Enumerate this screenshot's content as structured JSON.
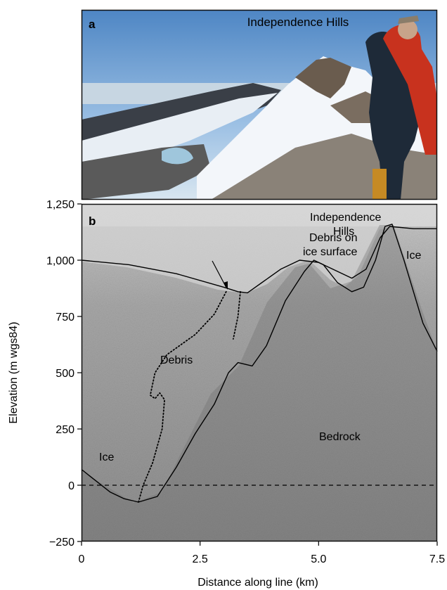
{
  "panel_a": {
    "label": "a",
    "caption": "Independence Hills"
  },
  "panel_b": {
    "label": "b",
    "annotations": {
      "debris_surface_line1": "Debris on",
      "debris_surface_line2": "ice surface",
      "hills_line1": "Independence",
      "hills_line2": "Hills",
      "ice_right": "Ice",
      "debris": "Debris",
      "bedrock": "Bedrock",
      "ice_left": "Ice"
    }
  },
  "chart_data": {
    "type": "line",
    "xlabel": "Distance along line (km)",
    "ylabel": "Elevation (m wgs84)",
    "xlim": [
      0,
      7.5
    ],
    "ylim": [
      -250,
      1250
    ],
    "x_ticks": [
      0,
      2.5,
      5.0,
      7.5
    ],
    "x_tick_labels": [
      "0",
      "2.5",
      "5.0",
      "7.5"
    ],
    "y_ticks": [
      1250,
      1000,
      750,
      500,
      250,
      0,
      -250
    ],
    "y_tick_labels": [
      "1,250",
      "1,000",
      "750",
      "500",
      "250",
      "0",
      "−250"
    ],
    "series": [
      {
        "style": "solid",
        "color": "#000000",
        "points": [
          [
            0,
            1000
          ],
          [
            1.0,
            980
          ],
          [
            2.0,
            940
          ],
          [
            3.0,
            880
          ],
          [
            3.3,
            860
          ],
          [
            3.5,
            855
          ],
          [
            3.8,
            900
          ],
          [
            4.2,
            960
          ],
          [
            4.6,
            1000
          ],
          [
            5.0,
            990
          ],
          [
            5.4,
            950
          ],
          [
            5.7,
            920
          ],
          [
            6.0,
            960
          ],
          [
            6.3,
            1100
          ],
          [
            6.5,
            1150
          ],
          [
            7.0,
            1140
          ],
          [
            7.5,
            1140
          ]
        ]
      },
      {
        "style": "solid",
        "color": "#000000",
        "points": [
          [
            0,
            70
          ],
          [
            0.3,
            20
          ],
          [
            0.6,
            -30
          ],
          [
            0.9,
            -60
          ],
          [
            1.2,
            -75
          ],
          [
            1.6,
            -50
          ],
          [
            2.0,
            80
          ],
          [
            2.4,
            230
          ],
          [
            2.8,
            360
          ],
          [
            3.1,
            500
          ],
          [
            3.3,
            545
          ],
          [
            3.6,
            530
          ],
          [
            3.9,
            620
          ],
          [
            4.3,
            820
          ],
          [
            4.7,
            950
          ],
          [
            4.9,
            1000
          ],
          [
            5.1,
            980
          ],
          [
            5.4,
            900
          ],
          [
            5.7,
            860
          ],
          [
            5.95,
            880
          ],
          [
            6.2,
            1000
          ],
          [
            6.4,
            1150
          ],
          [
            6.55,
            1160
          ],
          [
            6.8,
            1000
          ],
          [
            7.2,
            720
          ],
          [
            7.5,
            595
          ]
        ]
      },
      {
        "style": "dotted",
        "color": "#000000",
        "points": [
          [
            3.05,
            860
          ],
          [
            2.8,
            760
          ],
          [
            2.4,
            670
          ],
          [
            1.8,
            580
          ],
          [
            1.55,
            500
          ],
          [
            1.45,
            400
          ],
          [
            1.55,
            385
          ],
          [
            1.65,
            410
          ],
          [
            1.75,
            380
          ],
          [
            1.7,
            250
          ],
          [
            1.5,
            100
          ],
          [
            1.3,
            0
          ],
          [
            1.2,
            -75
          ]
        ]
      },
      {
        "style": "dotted",
        "color": "#000000",
        "points": [
          [
            3.35,
            860
          ],
          [
            3.3,
            750
          ],
          [
            3.2,
            650
          ]
        ]
      },
      {
        "style": "dashed",
        "color": "#000000",
        "points": [
          [
            0,
            0
          ],
          [
            7.5,
            0
          ]
        ]
      }
    ]
  }
}
